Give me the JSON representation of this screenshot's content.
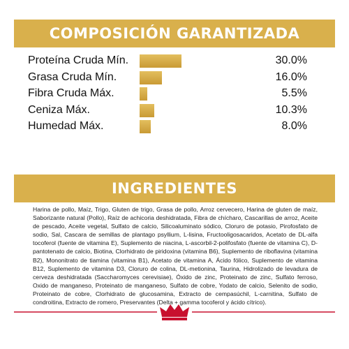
{
  "composition": {
    "title": "COMPOSICIÓN GARANTIZADA",
    "items": [
      {
        "label": "Proteína Cruda Mín.",
        "value": 30,
        "value_label": "30.0%"
      },
      {
        "label": "Grasa Cruda Mín.",
        "value": 16,
        "value_label": "16.0%"
      },
      {
        "label": "Fibra Cruda Máx.",
        "value": 5.5,
        "value_label": "5.5%"
      },
      {
        "label": "Ceniza Máx.",
        "value": 10.3,
        "value_label": "10.3%"
      },
      {
        "label": "Humedad Máx.",
        "value": 8,
        "value_label": "8.0%"
      }
    ]
  },
  "ingredients": {
    "title": "INGREDIENTES",
    "text": "Harina de pollo, Maíz, Trigo, Gluten de trigo, Grasa de pollo, Arroz cervecero, Harina de gluten de maíz, Saborizante natural (Pollo), Raíz de achicoria deshidratada, Fibra de chícharo, Cascarillas de arroz, Aceite de pescado, Aceite vegetal, Sulfato de calcio, Silicoaluminato sódico, Cloruro de potasio, Pirofosfato de sodio, Sal, Cascara de semillas de plantago psyllium, L-lisina, Fructooligosacaridos, Acetato de DL-alfa tocoferol (fuente de vitamina E), Suplemento de niacina, L-ascorbil-2-polifosfato (fuente de vitamina C), D-pantotenato de calcio, Biotina, Clorhidrato de piridoxina (vitamina B6), Suplemento de riboflavina (vitamina B2), Mononitrato de tiamina (vitamina B1), Acetato de vitamina A, Ácido fólico, Suplemento de vitamina B12, Suplemento de vitamina D3, Cloruro de colina, DL-metionina, Taurina, Hidrolizado de levadura de cerveza deshidratada (Saccharomyces cerevisiae), Óxido de zinc, Proteinato de zinc, Sulfato ferroso, Oxido de manganeso, Proteinato de manganeso, Sulfato de cobre, Yodato de calcio, Selenito de sodio, Proteinato de cobre, Clorhidrato de glucosamina, Extracto de cempasúchil, L-carnitina, Sulfato de condroitina, Extracto de romero, Preservantes (Delta + gamma tocoferol y ácido cítrico)."
  }
}
